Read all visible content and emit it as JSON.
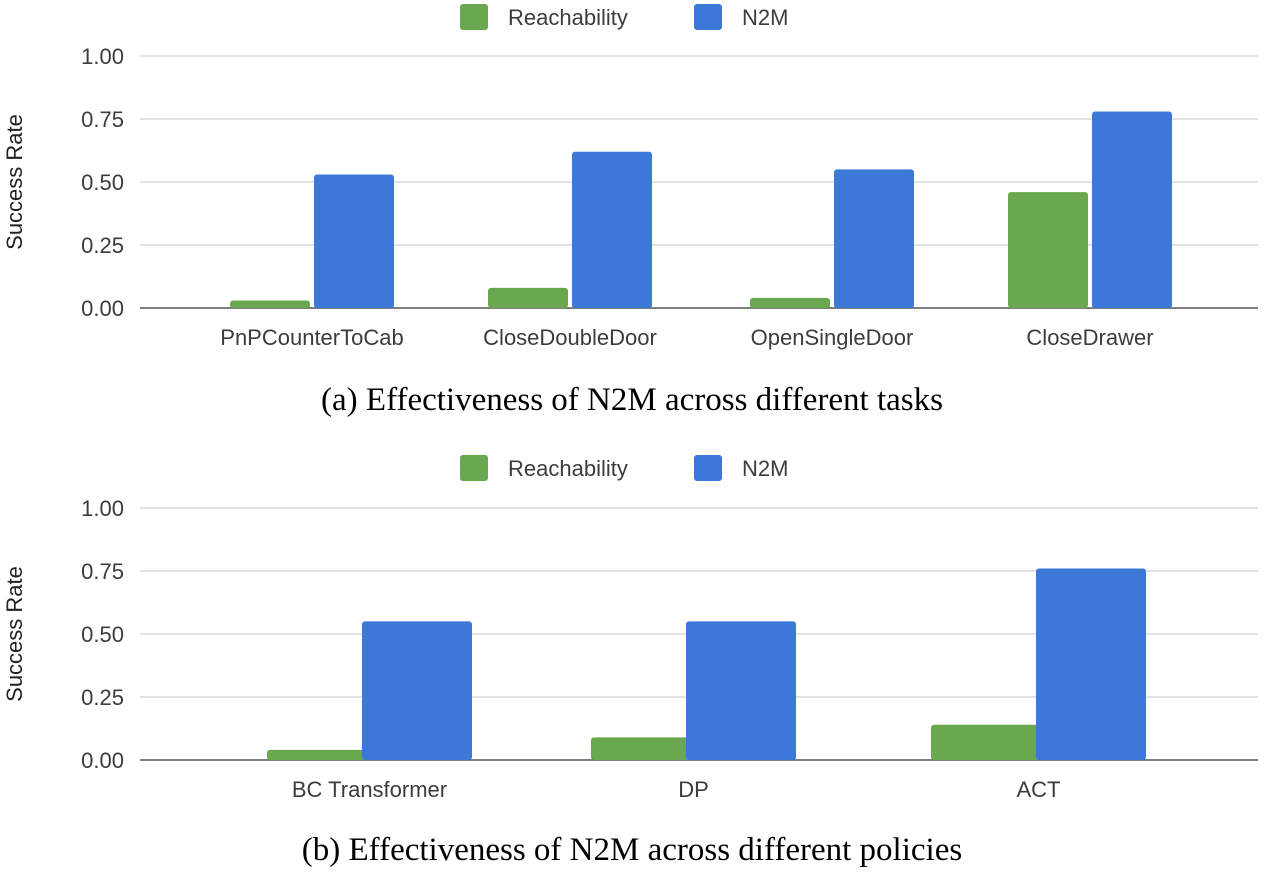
{
  "colors": {
    "Reachability": "#6aa84f",
    "N2M": "#3c78d8",
    "grid": "#d0d0d0",
    "axis": "#555555"
  },
  "chart_data": [
    {
      "type": "bar",
      "caption": "(a) Effectiveness of N2M across different tasks",
      "ylabel": "Success Rate",
      "ylim": [
        0,
        1
      ],
      "yticks": [
        "0.00",
        "0.25",
        "0.50",
        "0.75",
        "1.00"
      ],
      "legend_position": "top-center",
      "grid": true,
      "categories": [
        "PnPCounterToCab",
        "CloseDoubleDoor",
        "OpenSingleDoor",
        "CloseDrawer"
      ],
      "series": [
        {
          "name": "Reachability",
          "values": [
            0.03,
            0.08,
            0.04,
            0.46
          ]
        },
        {
          "name": "N2M",
          "values": [
            0.53,
            0.62,
            0.55,
            0.78
          ]
        }
      ]
    },
    {
      "type": "bar",
      "caption": "(b) Effectiveness of N2M across different policies",
      "ylabel": "Success Rate",
      "ylim": [
        0,
        1
      ],
      "yticks": [
        "0.00",
        "0.25",
        "0.50",
        "0.75",
        "1.00"
      ],
      "legend_position": "top-center",
      "grid": true,
      "categories": [
        "BC Transformer",
        "DP",
        "ACT"
      ],
      "series": [
        {
          "name": "Reachability",
          "values": [
            0.04,
            0.09,
            0.14
          ]
        },
        {
          "name": "N2M",
          "values": [
            0.55,
            0.55,
            0.76
          ]
        }
      ]
    }
  ]
}
